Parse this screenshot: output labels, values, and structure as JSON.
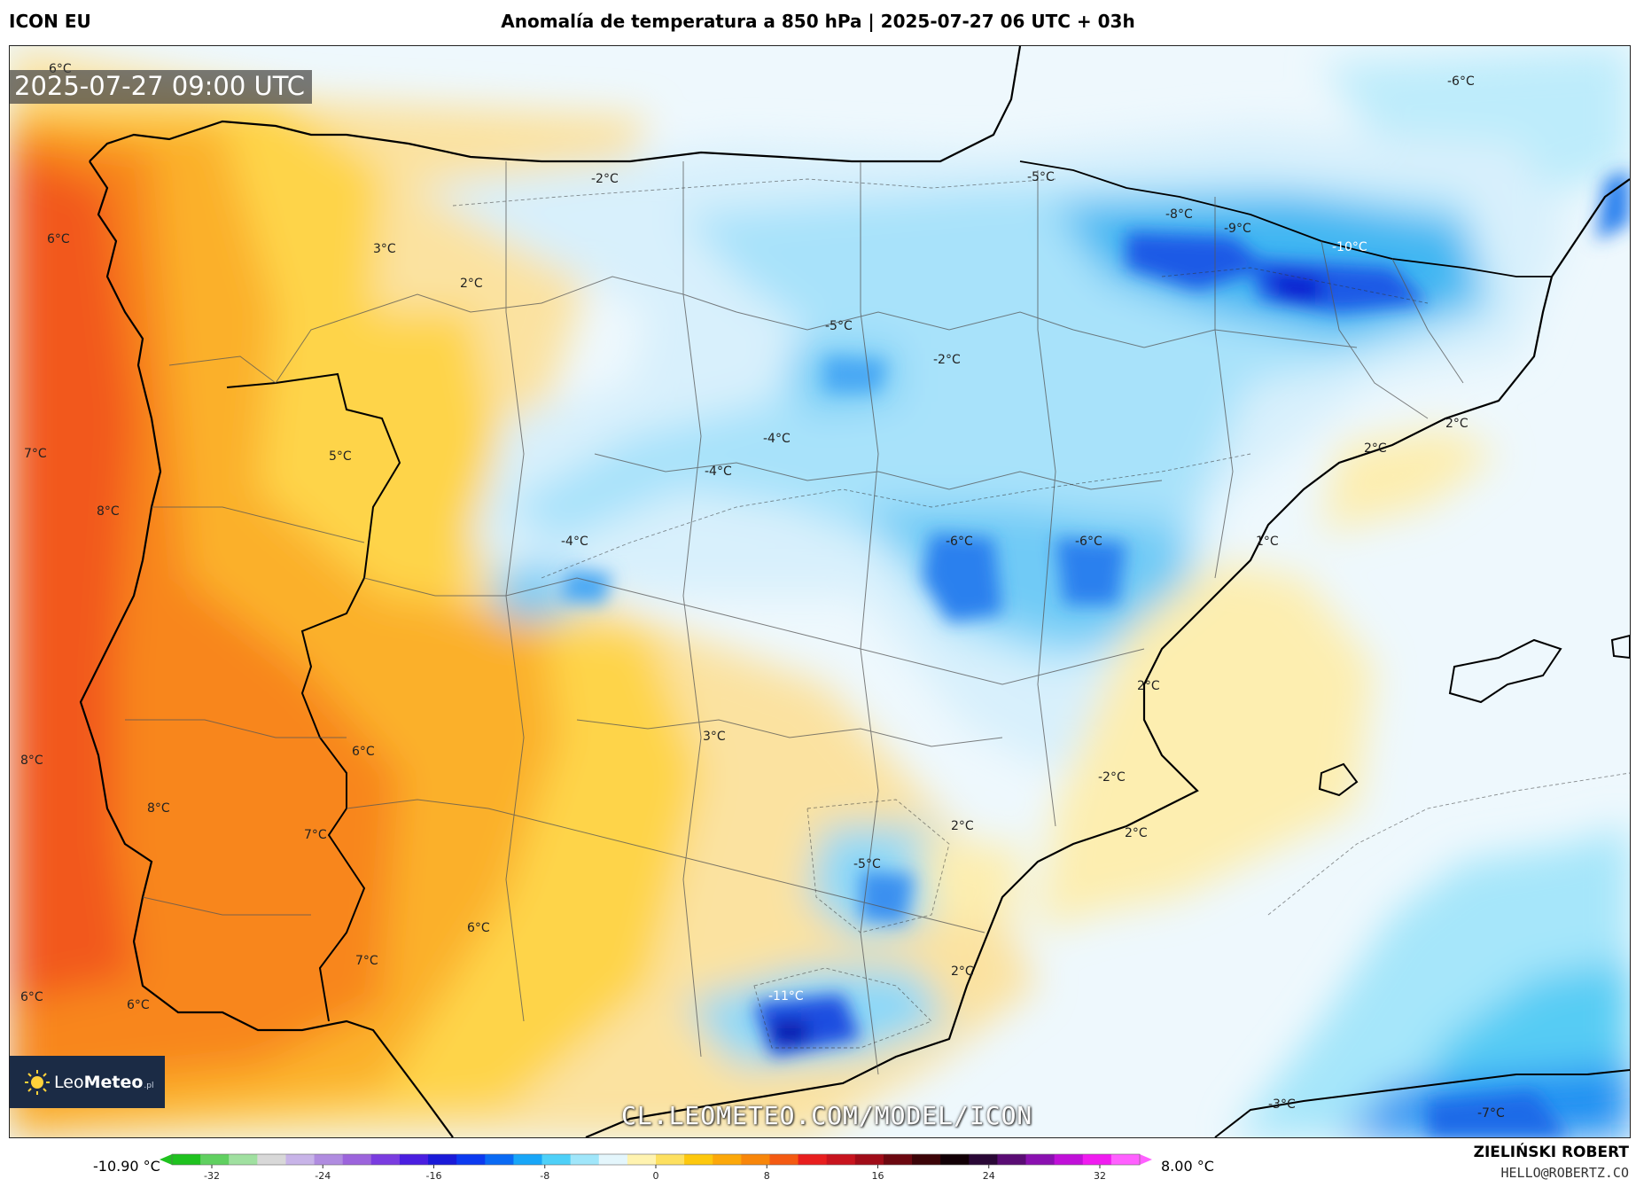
{
  "header": {
    "model": "ICON EU",
    "title": "Anomalía de temperatura a 850 hPa | 2025-07-27 06 UTC + 03h"
  },
  "map": {
    "valid_time": "2025-07-27 09:00 UTC",
    "watermark": "CL.LEOMETEO.COM/MODEL/ICON",
    "labels": [
      "6°C",
      "6°C",
      "7°C",
      "8°C",
      "8°C",
      "8°C",
      "6°C",
      "6°C",
      "3°C",
      "2°C",
      "-2°C",
      "5°C",
      "-4°C",
      "-4°C",
      "-4°C",
      "-5°C",
      "-2°C",
      "-5°C",
      "-8°C",
      "-9°C",
      "-10°C",
      "-6°C",
      "-6°C",
      "-6°C",
      "2°C",
      "2°C",
      "1°C",
      "2°C",
      "3°C",
      "6°C",
      "7°C",
      "6°C",
      "7°C",
      "2°C",
      "-2°C",
      "2°C",
      "-5°C",
      "2°C",
      "-11°C",
      "-3°C",
      "-7°C"
    ],
    "colors": {
      "land_warm": "#f7a41c",
      "sea_cold": "#8fdcf6",
      "border": "#444444",
      "coast": "#000000"
    }
  },
  "logo": {
    "text_light": "Leo",
    "text_bold": "Meteo",
    "suffix": ".pl"
  },
  "colorbar": {
    "min_label": "-10.90 °C",
    "max_label": "8.00 °C",
    "ticks": [
      "-32",
      "-24",
      "-16",
      "-8",
      "0",
      "8",
      "16",
      "24",
      "32"
    ],
    "stops": [
      "#1fc21f",
      "#60d060",
      "#a0e0a0",
      "#d8d8d8",
      "#c8b4e8",
      "#b08ce0",
      "#9c64dc",
      "#7a3ce0",
      "#4a1ee0",
      "#1a1ad8",
      "#0c3af0",
      "#0a6af4",
      "#18a6f8",
      "#4ed0f8",
      "#a0e6fa",
      "#e4f6fc",
      "#fff3b0",
      "#fde060",
      "#fdc80e",
      "#fca80a",
      "#f8860a",
      "#f45a12",
      "#e81e1e",
      "#c8141e",
      "#a00c18",
      "#6c0810",
      "#3c0408",
      "#120006",
      "#2a0836",
      "#5a0c74",
      "#8a10b0",
      "#c010d8",
      "#f01cf0",
      "#ff60ff"
    ]
  },
  "credit": {
    "name": "ZIELIŃSKI ROBERT",
    "email": "HELLO@ROBERTZ.CO"
  }
}
